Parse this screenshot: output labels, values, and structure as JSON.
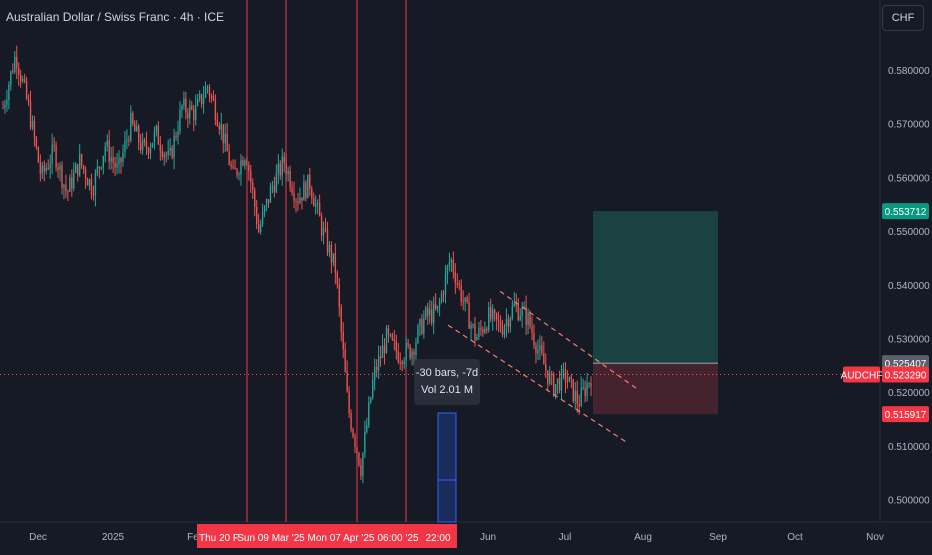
{
  "header": {
    "title": "Australian Dollar / Swiss Franc · 4h · ICE",
    "currency": "CHF"
  },
  "colors": {
    "background": "#161a25",
    "up": "#26a69a",
    "down": "#ef5350",
    "profit_zone": "#1b4a47",
    "loss_zone": "#4a2530",
    "vline": "#f23645",
    "trend": "#f77c6f",
    "measure": "#2962ff"
  },
  "chart_data": {
    "type": "candlestick",
    "symbol": "AUDCHF",
    "ylim": [
      0.4965,
      0.5885
    ],
    "y_ticks": [
      "0.580000",
      "0.570000",
      "0.560000",
      "0.550000",
      "0.540000",
      "0.530000",
      "0.520000",
      "0.510000",
      "0.500000"
    ],
    "x_ticks": [
      "Dec",
      "2025",
      "Fe",
      "Jun",
      "Jul",
      "Aug",
      "Sep",
      "Oct",
      "Nov"
    ],
    "x_range_labels": [
      "Thu 20 F",
      "Sun 09 Mar '25",
      "Mon 07 Apr '25",
      "06:00",
      "'25",
      "22:00"
    ],
    "price_badges": [
      {
        "label": "0.553712",
        "value": 0.553712,
        "kind": "target"
      },
      {
        "label": "0.525407",
        "value": 0.525407,
        "kind": "entry"
      },
      {
        "label": "0.523290",
        "value": 0.52329,
        "kind": "last"
      },
      {
        "label": "0.515917",
        "value": 0.515917,
        "kind": "stop"
      }
    ],
    "symbol_badge": "AUDCHF",
    "price_path": [
      0.573,
      0.583,
      0.573,
      0.56,
      0.565,
      0.557,
      0.563,
      0.558,
      0.566,
      0.561,
      0.57,
      0.565,
      0.568,
      0.563,
      0.573,
      0.572,
      0.577,
      0.57,
      0.56,
      0.565,
      0.55,
      0.558,
      0.563,
      0.556,
      0.559,
      0.55,
      0.543,
      0.517,
      0.506,
      0.523,
      0.53,
      0.527,
      0.528,
      0.534,
      0.535,
      0.545,
      0.537,
      0.53,
      0.534,
      0.532,
      0.536,
      0.534,
      0.527,
      0.521,
      0.523,
      0.518,
      0.523
    ],
    "trend_channel": {
      "upper": [
        [
          0.5388,
          "start"
        ],
        [
          0.5205,
          "end"
        ]
      ],
      "lower": [
        [
          0.5325,
          "start"
        ],
        [
          0.5105,
          "end"
        ]
      ]
    },
    "position": {
      "target": 0.553712,
      "entry": 0.525407,
      "stop": 0.515917
    },
    "measure_tooltip": {
      "line1": "-30 bars, -7d",
      "line2": "Vol 2.01 M"
    }
  }
}
